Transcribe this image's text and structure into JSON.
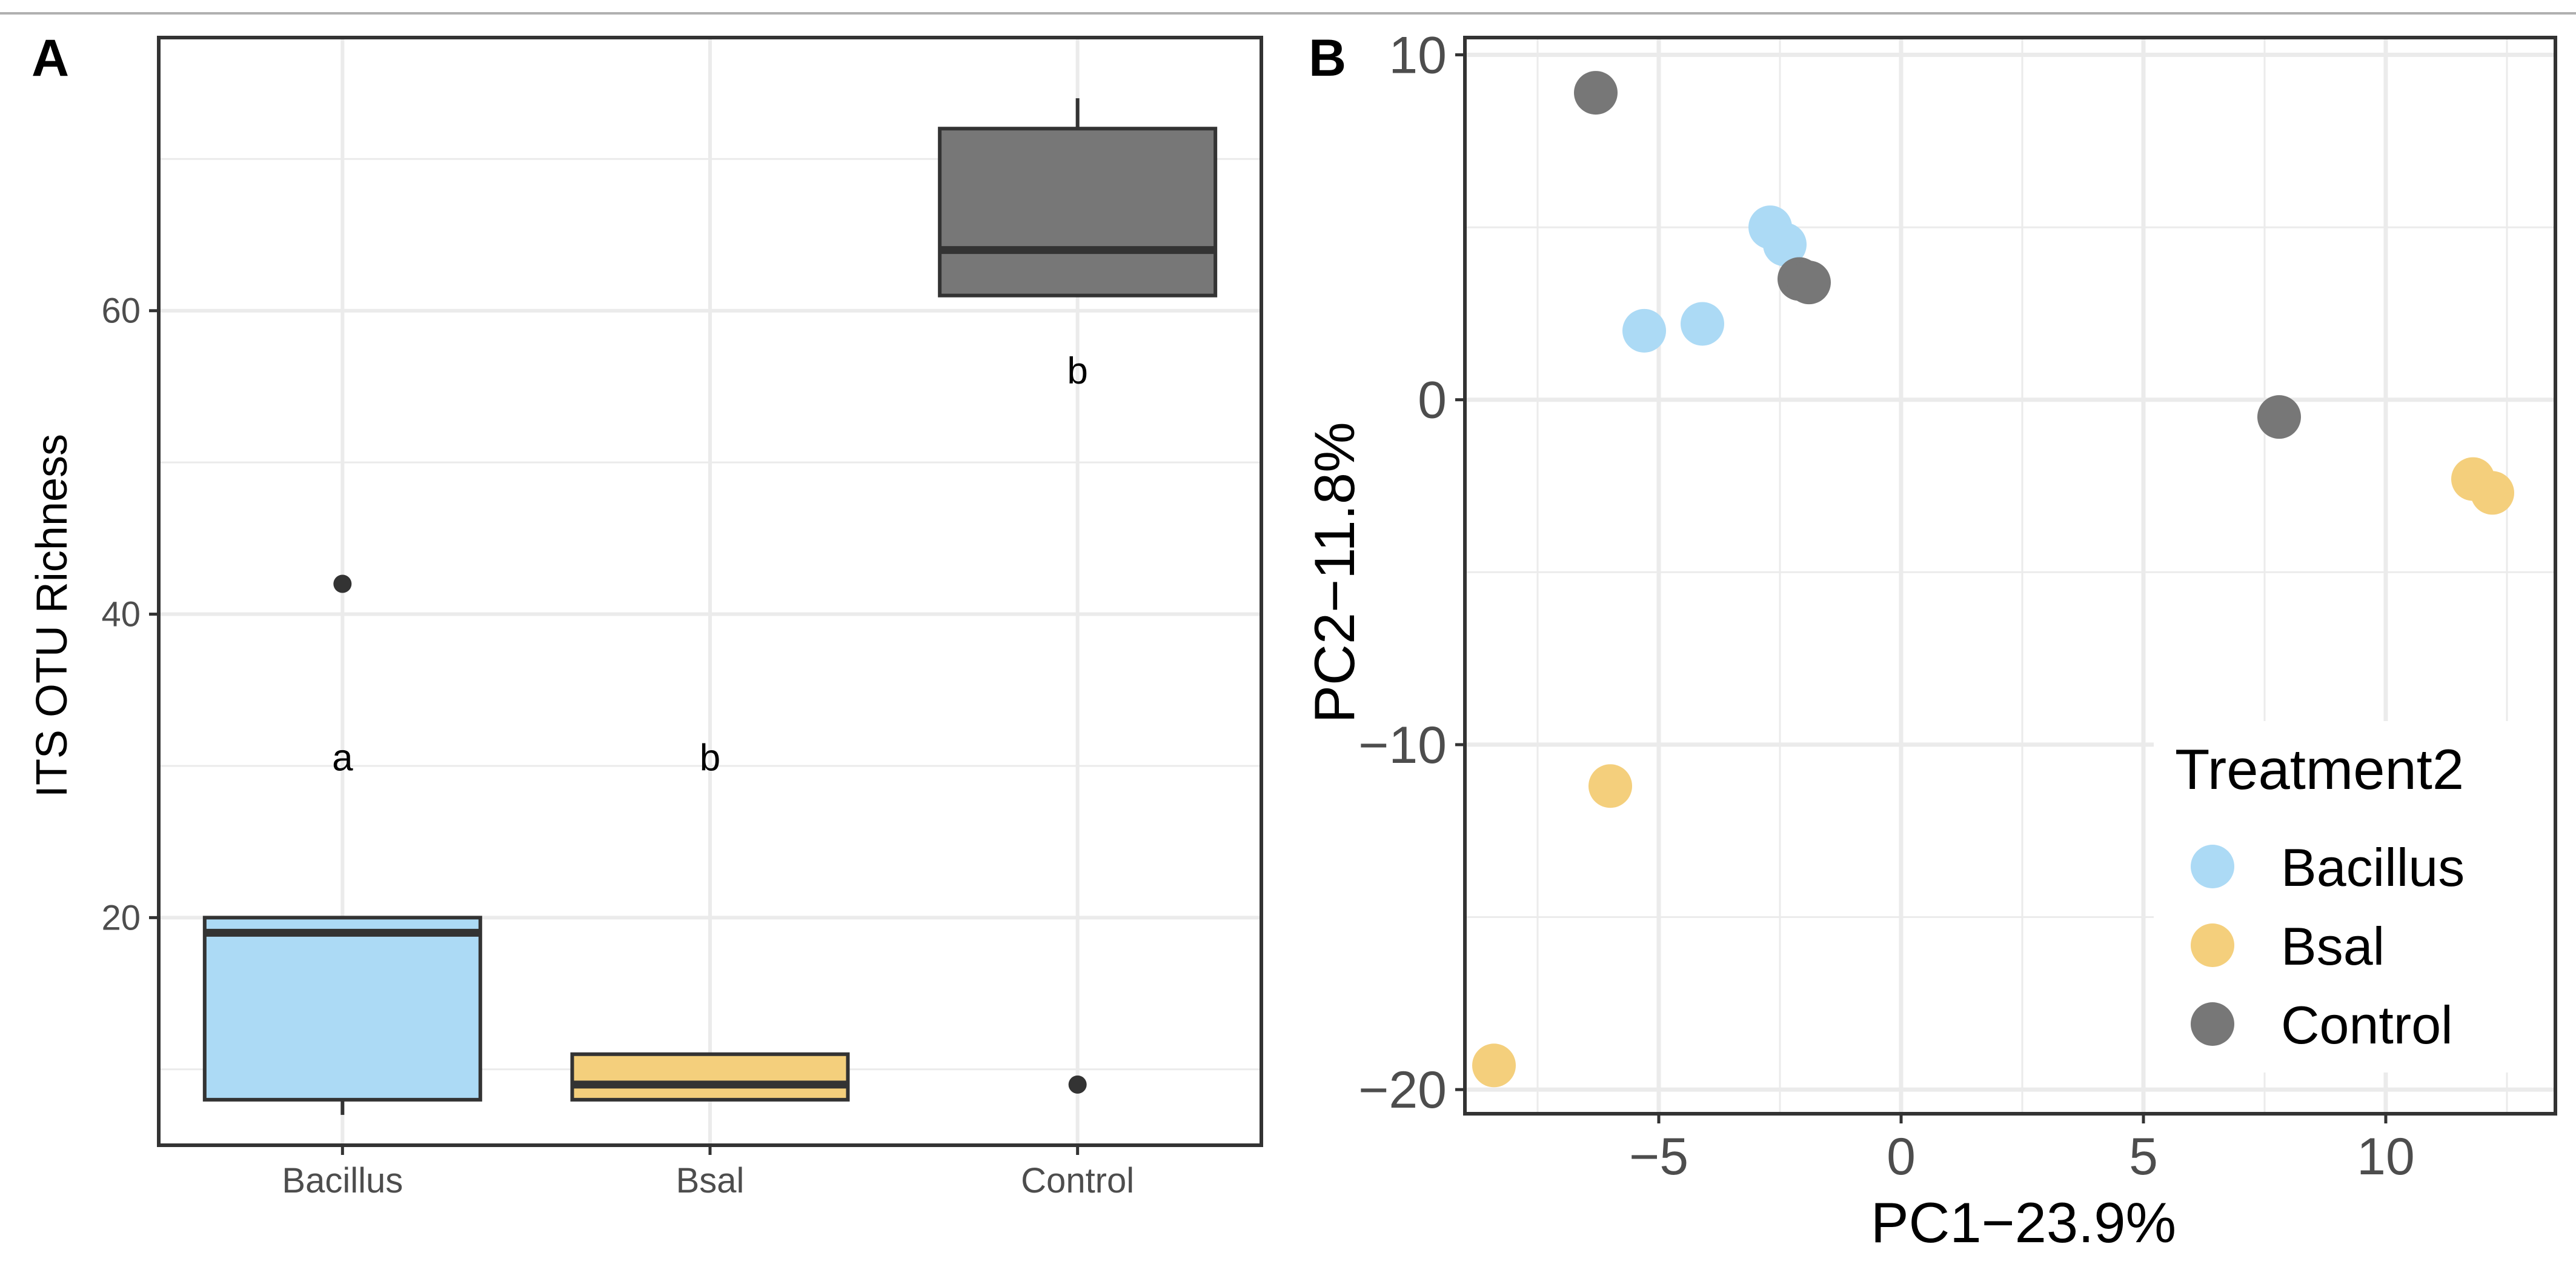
{
  "colors": {
    "bacillus": "#acdaf5",
    "bsal": "#f4cf7c",
    "control": "#777777",
    "outline": "#333333",
    "grid": "#ebebeb",
    "panel_border": "#333333",
    "top_rule": "#b0b0b0"
  },
  "chart_data": [
    {
      "panel_label": "A",
      "type": "box",
      "title": "",
      "xlabel": "",
      "ylabel": "ITS OTU Richness",
      "ylim": [
        5,
        78
      ],
      "yticks": [
        20,
        40,
        60
      ],
      "grid": true,
      "categories": [
        "Bacillus",
        "Bsal",
        "Control"
      ],
      "boxes": [
        {
          "group": "Bacillus",
          "lower_whisker": 7,
          "q1": 8,
          "median": 19,
          "q3": 20,
          "upper_whisker": 20,
          "outliers": [
            42
          ],
          "letter": "a",
          "letter_y": 30.5
        },
        {
          "group": "Bsal",
          "lower_whisker": 8,
          "q1": 8,
          "median": 9,
          "q3": 11,
          "upper_whisker": 11,
          "outliers": [],
          "letter": "b",
          "letter_y": 30.5
        },
        {
          "group": "Control",
          "lower_whisker": 61,
          "q1": 61,
          "median": 64,
          "q3": 72,
          "upper_whisker": 74,
          "outliers": [
            9
          ],
          "letter": "b",
          "letter_y": 56
        }
      ]
    },
    {
      "panel_label": "B",
      "type": "scatter",
      "title": "",
      "xlabel": "PC1−23.9%",
      "ylabel": "PC2−11.8%",
      "xlim": [
        -9,
        13.5
      ],
      "ylim": [
        -20.7,
        10.5
      ],
      "xticks": [
        -5,
        0,
        5,
        10
      ],
      "xtick_labels": [
        "−5",
        "0",
        "5",
        "10"
      ],
      "yticks": [
        -20,
        -10,
        0,
        10
      ],
      "ytick_labels": [
        "−20",
        "−10",
        "0",
        "10"
      ],
      "grid": true,
      "legend": {
        "title": "Treatment2",
        "position": "bottom-right",
        "entries": [
          "Bacillus",
          "Bsal",
          "Control"
        ]
      },
      "series": [
        {
          "name": "Bacillus",
          "points": [
            [
              -5.3,
              2.0
            ],
            [
              -4.1,
              2.2
            ],
            [
              -2.7,
              5.0
            ],
            [
              -2.4,
              4.5
            ]
          ]
        },
        {
          "name": "Bsal",
          "points": [
            [
              -6.0,
              -11.2
            ],
            [
              -8.4,
              -19.3
            ],
            [
              11.8,
              -2.3
            ],
            [
              12.2,
              -2.7
            ]
          ]
        },
        {
          "name": "Control",
          "points": [
            [
              -6.3,
              8.9
            ],
            [
              -2.1,
              3.5
            ],
            [
              -1.9,
              3.4
            ],
            [
              7.8,
              -0.5
            ]
          ]
        }
      ]
    }
  ]
}
